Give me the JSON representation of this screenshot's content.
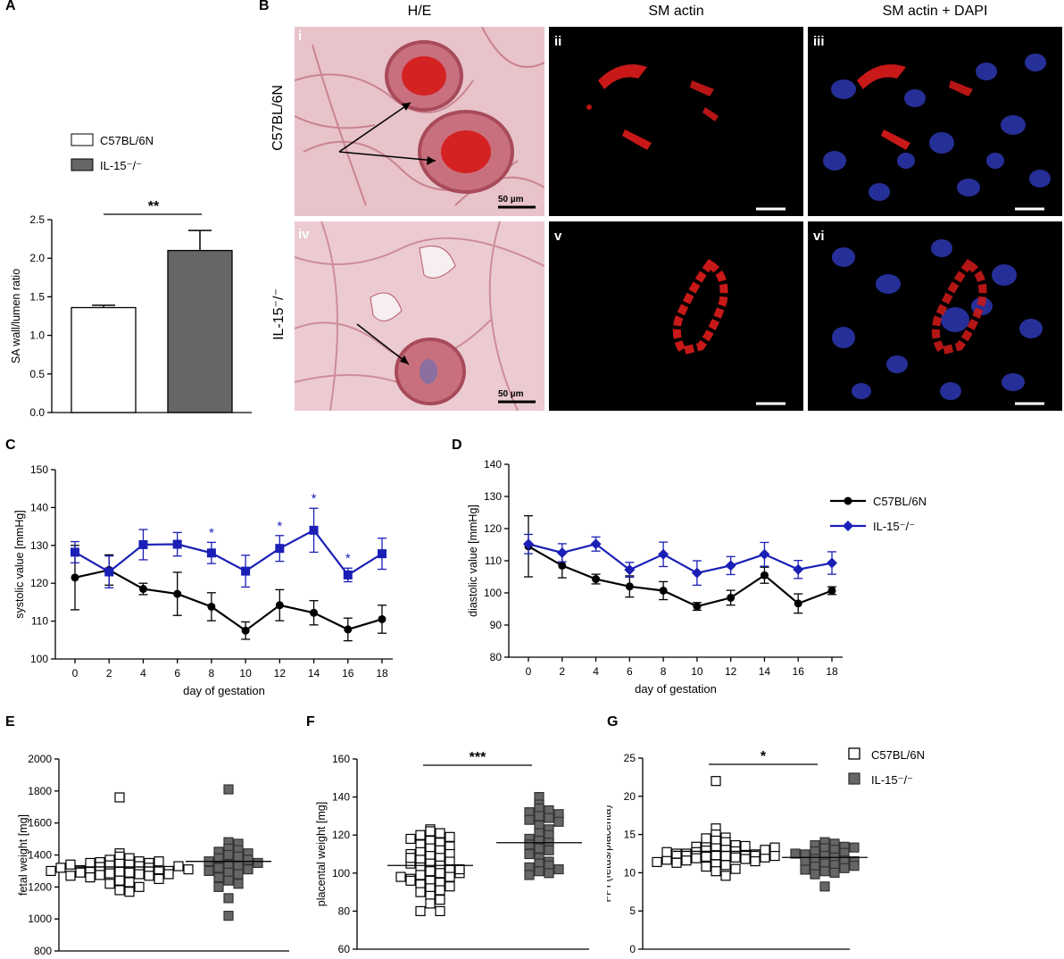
{
  "panel_labels": {
    "A": "A",
    "B": "B",
    "C": "C",
    "D": "D",
    "E": "E",
    "F": "F",
    "G": "G"
  },
  "micrographs": {
    "col_headers": [
      "H/E",
      "SM actin",
      "SM actin + DAPI"
    ],
    "row_labels": [
      "C57BL/6N",
      "IL-15⁻/⁻"
    ],
    "roman": [
      "i",
      "ii",
      "iii",
      "iv",
      "v",
      "vi"
    ],
    "scale_text": "50 µm",
    "colors": {
      "he": "#d9a0ab",
      "he_dark": "#b24a5c",
      "blood": "#d12020",
      "fluor_bg": "#000000",
      "actin": "#c81818",
      "dapi": "#2b35a8"
    }
  },
  "legend_AB": {
    "items": [
      "C57BL/6N",
      "IL-15⁻/⁻"
    ]
  },
  "legend_CD": {
    "items": [
      "C57BL/6N",
      "IL-15⁻/⁻"
    ]
  },
  "legend_EFG": {
    "items": [
      "C57BL/6N",
      "IL-15⁻/⁻"
    ]
  },
  "colors": {
    "black": "#000000",
    "blue": "#1a1fb5",
    "bar_wt": "#ffffff",
    "bar_ko": "#666666",
    "point_ko": "#666666"
  },
  "chart_data": [
    {
      "id": "A",
      "type": "bar",
      "ylabel": "SA wall/lumen ratio",
      "ylim": [
        0,
        2.5
      ],
      "yticks": [
        "0.0",
        "0.5",
        "1.0",
        "1.5",
        "2.0",
        "2.5"
      ],
      "categories": [
        "C57BL/6N",
        "IL-15⁻/⁻"
      ],
      "values": [
        1.36,
        2.1
      ],
      "errors": [
        0.03,
        0.26
      ],
      "significance": "**"
    },
    {
      "id": "C",
      "type": "line",
      "xlabel": "day of gestation",
      "ylabel": "systolic value [mmHg]",
      "ylim": [
        100,
        150
      ],
      "yticks": [
        "100",
        "110",
        "120",
        "130",
        "140",
        "150"
      ],
      "x": [
        0,
        2,
        4,
        6,
        8,
        10,
        12,
        14,
        16,
        18
      ],
      "series": [
        {
          "name": "C57BL/6N",
          "values": [
            121.5,
            123.5,
            118.5,
            117.2,
            113.8,
            107.5,
            114.2,
            112.2,
            107.8,
            110.5
          ],
          "errors": [
            8.5,
            4,
            1.5,
            5.7,
            3.7,
            2.3,
            4.1,
            3.2,
            3,
            3.7
          ]
        },
        {
          "name": "IL-15⁻/⁻",
          "values": [
            128.2,
            123,
            130.2,
            130.3,
            128,
            123.2,
            129.2,
            134,
            122.2,
            127.8
          ],
          "errors": [
            2.8,
            4.2,
            4,
            3.1,
            2.8,
            4.2,
            3.4,
            5.8,
            1.8,
            4.1
          ]
        }
      ],
      "stars": [
        {
          "x": 8,
          "text": "*"
        },
        {
          "x": 12,
          "text": "*"
        },
        {
          "x": 14,
          "text": "*"
        },
        {
          "x": 16,
          "text": "*"
        }
      ]
    },
    {
      "id": "D",
      "type": "line",
      "xlabel": "day of gestation",
      "ylabel": "diastolic value [mmHg]",
      "ylim": [
        80,
        140
      ],
      "yticks": [
        "80",
        "90",
        "100",
        "110",
        "120",
        "130",
        "140"
      ],
      "x": [
        0,
        2,
        4,
        6,
        8,
        10,
        12,
        14,
        16,
        18
      ],
      "series": [
        {
          "name": "C57BL/6N",
          "values": [
            114.5,
            108.5,
            104.3,
            102,
            100.7,
            95.8,
            98.5,
            105.5,
            96.7,
            100.7
          ],
          "errors": [
            9.5,
            3.8,
            1.5,
            3.3,
            2.8,
            1.2,
            2.3,
            2.5,
            3,
            1.2
          ]
        },
        {
          "name": "IL-15⁻/⁻",
          "values": [
            115.2,
            112.5,
            115.2,
            107.2,
            112,
            106.2,
            108.5,
            112,
            107.3,
            109.3
          ],
          "errors": [
            3,
            2.8,
            2.2,
            2.3,
            3.8,
            3.8,
            2.8,
            3.7,
            2.8,
            3.5
          ]
        }
      ]
    },
    {
      "id": "E",
      "type": "scatter",
      "ylabel": "fetal weight [mg]",
      "ylim": [
        800,
        2000
      ],
      "yticks": [
        "800",
        "1000",
        "1200",
        "1400",
        "1600",
        "1800",
        "2000"
      ],
      "groups": [
        {
          "name": "C57BL/6N",
          "mean": 1325,
          "values": [
            1760,
            1410,
            1390,
            1380,
            1370,
            1360,
            1355,
            1350,
            1345,
            1340,
            1335,
            1330,
            1325,
            1320,
            1315,
            1310,
            1305,
            1300,
            1295,
            1290,
            1285,
            1280,
            1275,
            1270,
            1260,
            1250,
            1240,
            1230,
            1220,
            1200,
            1180,
            1170,
            1340,
            1330,
            1320,
            1310,
            1300,
            1350,
            1360,
            1290,
            1280,
            1270
          ]
        },
        {
          "name": "IL-15⁻/⁻",
          "mean": 1360,
          "values": [
            1810,
            1480,
            1470,
            1440,
            1430,
            1420,
            1410,
            1400,
            1390,
            1380,
            1370,
            1360,
            1350,
            1340,
            1330,
            1320,
            1310,
            1300,
            1290,
            1280,
            1260,
            1240,
            1220,
            1200,
            1130,
            1020
          ]
        }
      ]
    },
    {
      "id": "F",
      "type": "scatter",
      "ylabel": "placental weight [mg]",
      "ylim": [
        60,
        160
      ],
      "yticks": [
        "60",
        "80",
        "100",
        "120",
        "140",
        "160"
      ],
      "significance": "***",
      "groups": [
        {
          "name": "C57BL/6N",
          "mean": 104,
          "values": [
            123,
            122,
            121,
            120,
            119,
            118,
            117,
            116,
            115,
            114,
            113,
            112,
            111,
            110,
            109,
            108,
            107,
            106,
            105,
            104,
            103,
            102,
            101,
            100,
            99,
            98,
            97,
            96,
            95,
            94,
            93,
            92,
            91,
            90,
            88,
            86,
            84,
            80,
            80,
            110,
            105,
            100,
            98,
            96,
            108,
            102
          ]
        },
        {
          "name": "IL-15⁻/⁻",
          "mean": 116,
          "values": [
            140,
            136,
            134,
            133,
            132,
            131,
            130,
            129,
            128,
            127,
            125,
            123,
            121,
            120,
            118,
            117,
            116,
            115,
            113,
            112,
            110,
            108,
            106,
            105,
            104,
            103,
            102,
            101,
            100,
            99
          ]
        }
      ]
    },
    {
      "id": "G",
      "type": "scatter",
      "ylabel": "FPI (fetus/placenta)",
      "ylim": [
        0,
        25
      ],
      "yticks": [
        "0",
        "5",
        "10",
        "15",
        "20",
        "25"
      ],
      "significance": "*",
      "groups": [
        {
          "name": "C57BL/6N",
          "mean": 12.8,
          "values": [
            22,
            15.8,
            15,
            14.6,
            14.2,
            14,
            13.8,
            13.6,
            13.4,
            13.2,
            13,
            12.9,
            12.8,
            12.7,
            12.6,
            12.5,
            12.4,
            12.3,
            12.2,
            12.1,
            12,
            11.9,
            11.8,
            11.6,
            11.5,
            11.3,
            11.1,
            11,
            10.8,
            10.5,
            10.2,
            9.6,
            13.5,
            12.5,
            12,
            13,
            14.5,
            11.7,
            12.7,
            13.3,
            12.2,
            11.4
          ]
        },
        {
          "name": "IL-15⁻/⁻",
          "mean": 12.0,
          "values": [
            14,
            13.8,
            13.6,
            13.4,
            13.2,
            13,
            12.8,
            12.6,
            12.4,
            12.2,
            12,
            11.8,
            11.6,
            11.4,
            11.2,
            11,
            10.8,
            10.6,
            10.4,
            10.2,
            10,
            9.8,
            8.2,
            13.3,
            12.5,
            11.5,
            10.9
          ]
        }
      ]
    }
  ]
}
